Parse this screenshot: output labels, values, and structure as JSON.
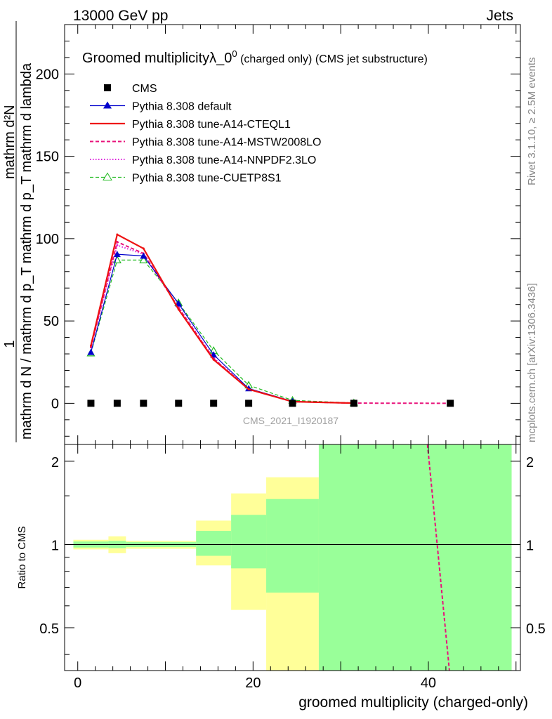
{
  "header": {
    "left": "13000 GeV pp",
    "right": "Jets"
  },
  "side_labels": {
    "rivet": "Rivet 3.1.10, ≥ 2.5M events",
    "mcplots": "mcplots.cern.ch [arXiv:1306.3436]"
  },
  "watermark": "CMS_2021_I1920187",
  "colors": {
    "cms": "#000000",
    "default": "#0000cc",
    "cteql1": "#ee1111",
    "mstw": "#e8127a",
    "nnpdf": "#dd22dd",
    "cuetp8s1": "#22bb22",
    "band_yellow": "#ffff99",
    "band_green": "#99ff99"
  },
  "chart_data": [
    {
      "type": "line",
      "title": "Groomed multiplicityλ_0",
      "title_sup": "0",
      "title_suffix": " (charged only) (CMS jet substructure)",
      "ylabel_numerator": "1",
      "ylabel_denominator": "mathrm d N / mathrm d p_T mathrm d p_T mathrm d lambda",
      "ylabel_top": "mathrm d²N",
      "xlim": [
        -1.5,
        50.5
      ],
      "ylim": [
        -25,
        230
      ],
      "yticks": [
        0,
        50,
        100,
        150,
        200
      ],
      "legend_position": "top-left",
      "series": [
        {
          "name": "CMS",
          "key": "cms",
          "style": "marker-square",
          "x": [
            1.5,
            4.5,
            7.5,
            11.5,
            15.5,
            19.5,
            24.5,
            31.5,
            42.5
          ],
          "y": [
            0,
            0,
            0,
            0,
            0,
            0,
            0,
            0,
            0
          ]
        },
        {
          "name": "Pythia 8.308 default",
          "key": "default",
          "style": "solid-triangle",
          "x": [
            1.5,
            4.5,
            7.5,
            11.5,
            15.5,
            19.5,
            24.5,
            31.5
          ],
          "y": [
            31,
            90.5,
            89.5,
            60.5,
            29.5,
            9,
            1.2,
            0.1
          ]
        },
        {
          "name": "Pythia 8.308 tune-A14-CTEQL1",
          "key": "cteql1",
          "style": "solid-thick",
          "x": [
            1.5,
            4.5,
            7.5,
            11.5,
            15.5,
            19.5,
            24.5,
            31.5
          ],
          "y": [
            35,
            102.5,
            94,
            57,
            26.5,
            8.5,
            1.0,
            0.1
          ]
        },
        {
          "name": "Pythia 8.308 tune-A14-MSTW2008LO",
          "key": "mstw",
          "style": "dashed",
          "x": [
            1.5,
            4.5,
            7.5,
            11.5,
            15.5,
            19.5,
            24.5,
            31.5,
            42.5
          ],
          "y": [
            34,
            98,
            91,
            58,
            27,
            8.7,
            1.0,
            0.1,
            0
          ]
        },
        {
          "name": "Pythia 8.308 tune-A14-NNPDF2.3LO",
          "key": "nnpdf",
          "style": "dotted",
          "x": [
            1.5,
            4.5,
            7.5,
            11.5,
            15.5,
            19.5,
            24.5,
            31.5
          ],
          "y": [
            34.5,
            96,
            90.5,
            58.5,
            27.5,
            8.8,
            1.0,
            0.1
          ]
        },
        {
          "name": "Pythia 8.308 tune-CUETP8S1",
          "key": "cuetp8s1",
          "style": "dashed-open-triangle",
          "x": [
            1.5,
            4.5,
            7.5,
            11.5,
            15.5,
            19.5,
            24.5,
            31.5
          ],
          "y": [
            30.5,
            87,
            87,
            61,
            32,
            11,
            1.8,
            0.2
          ]
        }
      ]
    },
    {
      "type": "area",
      "ylabel": "Ratio to CMS",
      "xlabel": "groomed multiplicity (charged-only)",
      "xlim": [
        -1.5,
        50.5
      ],
      "ylim": [
        0.35,
        2.3
      ],
      "xticks": [
        0,
        20,
        40
      ],
      "yticks": [
        0.5,
        1,
        2
      ],
      "reference": 1,
      "bins": [
        {
          "x": [
            -0.5,
            3.5
          ],
          "yellow": [
            0.96,
            1.04
          ],
          "green": [
            0.975,
            1.025
          ]
        },
        {
          "x": [
            3.5,
            5.5
          ],
          "yellow": [
            0.93,
            1.07
          ],
          "green": [
            0.97,
            1.03
          ]
        },
        {
          "x": [
            5.5,
            13.5
          ],
          "yellow": [
            0.965,
            1.03
          ],
          "green": [
            0.98,
            1.02
          ]
        },
        {
          "x": [
            13.5,
            17.5
          ],
          "yellow": [
            0.84,
            1.22
          ],
          "green": [
            0.91,
            1.12
          ]
        },
        {
          "x": [
            17.5,
            21.5
          ],
          "yellow": [
            0.58,
            1.53
          ],
          "green": [
            0.82,
            1.28
          ]
        },
        {
          "x": [
            21.5,
            27.5
          ],
          "yellow": [
            0.35,
            1.75
          ],
          "green": [
            0.67,
            1.46
          ]
        },
        {
          "x": [
            27.5,
            49.5
          ],
          "yellow": [
            0.35,
            2.3
          ],
          "green": [
            0.35,
            2.3
          ]
        }
      ],
      "series": [
        {
          "name": "Pythia 8.308 tune-A14-MSTW2008LO",
          "key": "mstw",
          "style": "dashed",
          "x": [
            39.9,
            42.4
          ],
          "y": [
            2.3,
            0.35
          ]
        }
      ]
    }
  ]
}
